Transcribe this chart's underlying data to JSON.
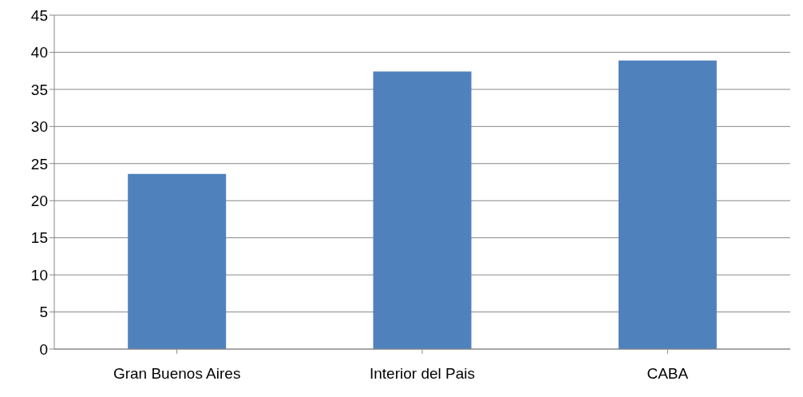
{
  "chart_data": {
    "type": "bar",
    "categories": [
      "Gran Buenos Aires",
      "Interior del Pais",
      "CABA"
    ],
    "values": [
      23.6,
      37.4,
      38.9
    ],
    "color": "#4f81bd",
    "ylim": [
      0,
      45
    ],
    "yticks": [
      0,
      5,
      10,
      15,
      20,
      25,
      30,
      35,
      40,
      45
    ],
    "grid": "y"
  }
}
